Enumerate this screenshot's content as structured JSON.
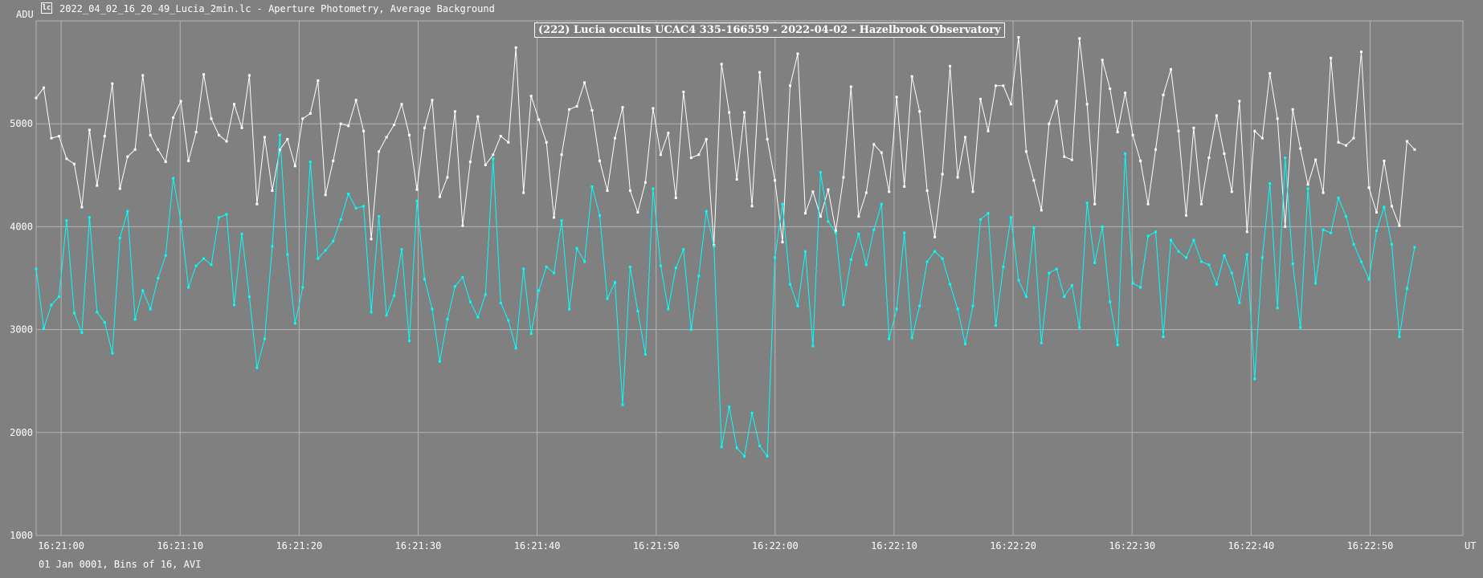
{
  "window": {
    "file_title": "2022_04_02_16_20_49_Lucia_2min.lc - Aperture Photometry, Average Background",
    "footer_text": "01 Jan 0001, Bins of 16, AVI"
  },
  "chart_data": {
    "type": "line",
    "title": "(222) Lucia occults UCAC4 335-166559 - 2022-04-02 - Hazelbrook Observatory",
    "ylabel": "ADU",
    "xlabel": "UT",
    "ylim": [
      1000,
      6000
    ],
    "xlim_seconds": [
      -2.1,
      117.8
    ],
    "x_start_seconds": -2.1,
    "x_step_seconds": 0.64,
    "y_ticks": [
      1000,
      2000,
      3000,
      4000,
      5000
    ],
    "x_ticks": [
      "16:21:00",
      "16:21:10",
      "16:21:20",
      "16:21:30",
      "16:21:40",
      "16:21:50",
      "16:22:00",
      "16:22:10",
      "16:22:20",
      "16:22:30",
      "16:22:40",
      "16:22:50"
    ],
    "grid": true,
    "colors": {
      "background": "#808080",
      "grid": "#b4b4b4",
      "target": "#00ffff",
      "comparison": "#ffffff"
    },
    "series": [
      {
        "key": "comparison",
        "values": [
          5250,
          5350,
          4860,
          4880,
          4660,
          4610,
          4190,
          4940,
          4400,
          4880,
          5390,
          4370,
          4680,
          4750,
          5470,
          4890,
          4750,
          4630,
          5060,
          5220,
          4640,
          4920,
          5480,
          5050,
          4890,
          4830,
          5190,
          4960,
          5470,
          4220,
          4870,
          4350,
          4750,
          4850,
          4590,
          5050,
          5100,
          5420,
          4310,
          4640,
          5000,
          4980,
          5230,
          4930,
          3880,
          4730,
          4870,
          4990,
          5190,
          4890,
          4360,
          4960,
          5230,
          4290,
          4480,
          5120,
          4010,
          4630,
          5070,
          4600,
          4700,
          4880,
          4820,
          5740,
          4330,
          5270,
          5040,
          4820,
          4090,
          4700,
          5140,
          5170,
          5400,
          5130,
          4640,
          4350,
          4860,
          5160,
          4350,
          4140,
          4430,
          5150,
          4700,
          4910,
          4280,
          5310,
          4670,
          4700,
          4850,
          3820,
          5580,
          5110,
          4460,
          5110,
          4200,
          5500,
          4850,
          4450,
          3850,
          5370,
          5680,
          4130,
          4340,
          4100,
          4360,
          3960,
          4480,
          5360,
          4100,
          4330,
          4800,
          4720,
          4340,
          5260,
          4390,
          5460,
          5120,
          4350,
          3900,
          4510,
          5560,
          4480,
          4870,
          4340,
          5240,
          4930,
          5370,
          5370,
          5190,
          5840,
          4730,
          4450,
          4160,
          5000,
          5220,
          4680,
          4650,
          5830,
          5190,
          4220,
          5620,
          5340,
          4920,
          5300,
          4890,
          4640,
          4220,
          4750,
          5280,
          5530,
          4930,
          4110,
          4960,
          4220,
          4670,
          5080,
          4710,
          4340,
          5220,
          3950,
          4930,
          4860,
          5490,
          5050,
          4000,
          5140,
          4760,
          4410,
          4650,
          4330,
          5640,
          4820,
          4790,
          4860,
          5700,
          4380,
          4140,
          4640,
          4200,
          4010,
          4830,
          4750
        ]
      },
      {
        "key": "target",
        "values": [
          3590,
          3010,
          3240,
          3320,
          4060,
          3160,
          2970,
          4090,
          3170,
          3070,
          2770,
          3890,
          4150,
          3100,
          3380,
          3200,
          3500,
          3720,
          4470,
          4050,
          3410,
          3620,
          3690,
          3630,
          4090,
          4120,
          3240,
          3930,
          3320,
          2630,
          2910,
          3810,
          4890,
          3730,
          3060,
          3410,
          4630,
          3690,
          3770,
          3860,
          4070,
          4320,
          4180,
          4200,
          3170,
          4100,
          3140,
          3330,
          3780,
          2890,
          4250,
          3490,
          3200,
          2690,
          3100,
          3420,
          3510,
          3270,
          3120,
          3340,
          4660,
          3260,
          3090,
          2820,
          3590,
          2960,
          3380,
          3610,
          3550,
          4060,
          3200,
          3790,
          3660,
          4390,
          4110,
          3300,
          3460,
          2270,
          3610,
          3180,
          2760,
          4370,
          3620,
          3200,
          3600,
          3780,
          3000,
          3520,
          4150,
          3810,
          1860,
          2250,
          1850,
          1770,
          2190,
          1870,
          1770,
          3700,
          4220,
          3440,
          3230,
          3760,
          2840,
          4530,
          4050,
          3940,
          3240,
          3680,
          3930,
          3630,
          3970,
          4220,
          2910,
          3200,
          3940,
          2920,
          3230,
          3660,
          3760,
          3690,
          3440,
          3200,
          2860,
          3230,
          4070,
          4130,
          3040,
          3610,
          4090,
          3480,
          3320,
          3990,
          2870,
          3550,
          3590,
          3320,
          3430,
          3020,
          4230,
          3650,
          4000,
          3270,
          2850,
          4710,
          3450,
          3410,
          3910,
          3950,
          2930,
          3870,
          3760,
          3700,
          3870,
          3660,
          3630,
          3440,
          3720,
          3550,
          3260,
          3730,
          2520,
          3700,
          4420,
          3210,
          4670,
          3640,
          3020,
          4370,
          3450,
          3970,
          3940,
          4280,
          4100,
          3830,
          3660,
          3490,
          3960,
          4190,
          3830,
          2930,
          3400,
          3800
        ]
      }
    ]
  }
}
